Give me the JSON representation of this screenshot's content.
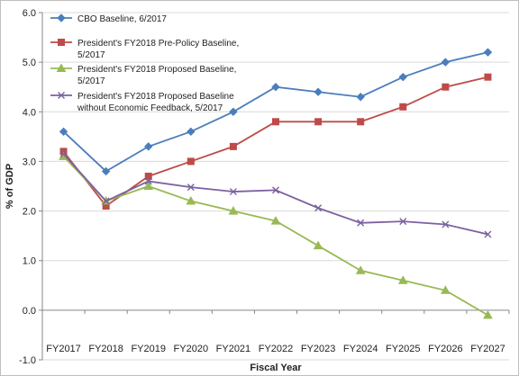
{
  "chart_data": {
    "type": "line",
    "xlabel": "Fiscal Year",
    "ylabel": "% of GDP",
    "ylim": [
      -1.0,
      6.0
    ],
    "yticks": [
      "-1.0",
      "0.0",
      "1.0",
      "2.0",
      "3.0",
      "4.0",
      "5.0",
      "6.0"
    ],
    "categories": [
      "FY2017",
      "FY2018",
      "FY2019",
      "FY2020",
      "FY2021",
      "FY2022",
      "FY2023",
      "FY2024",
      "FY2025",
      "FY2026",
      "FY2027"
    ],
    "legend_position": "top-left",
    "grid": "horizontal",
    "series": [
      {
        "name_lines": [
          "CBO Baseline, 6/2017"
        ],
        "color": "#4A7EBB",
        "marker": "diamond",
        "values": [
          3.6,
          2.8,
          3.3,
          3.6,
          4.0,
          4.5,
          4.4,
          4.3,
          4.7,
          5.0,
          5.2
        ]
      },
      {
        "name_lines": [
          "President's FY2018 Pre-Policy Baseline,",
          "5/2017"
        ],
        "color": "#BE4B48",
        "marker": "square",
        "values": [
          3.2,
          2.1,
          2.7,
          3.0,
          3.3,
          3.8,
          3.8,
          3.8,
          4.1,
          4.5,
          4.7
        ]
      },
      {
        "name_lines": [
          "President's FY2018 Proposed Baseline,",
          "5/2017"
        ],
        "color": "#98B954",
        "marker": "triangle",
        "values": [
          3.1,
          2.2,
          2.5,
          2.2,
          2.0,
          1.8,
          1.3,
          0.8,
          0.6,
          0.4,
          -0.1
        ]
      },
      {
        "name_lines": [
          "President's FY2018 Proposed Baseline",
          "without Economic Feedback, 5/2017"
        ],
        "color": "#7D60A0",
        "marker": "x",
        "values": [
          3.15,
          2.2,
          2.6,
          2.48,
          2.39,
          2.42,
          2.06,
          1.76,
          1.79,
          1.73,
          1.53
        ]
      }
    ]
  }
}
